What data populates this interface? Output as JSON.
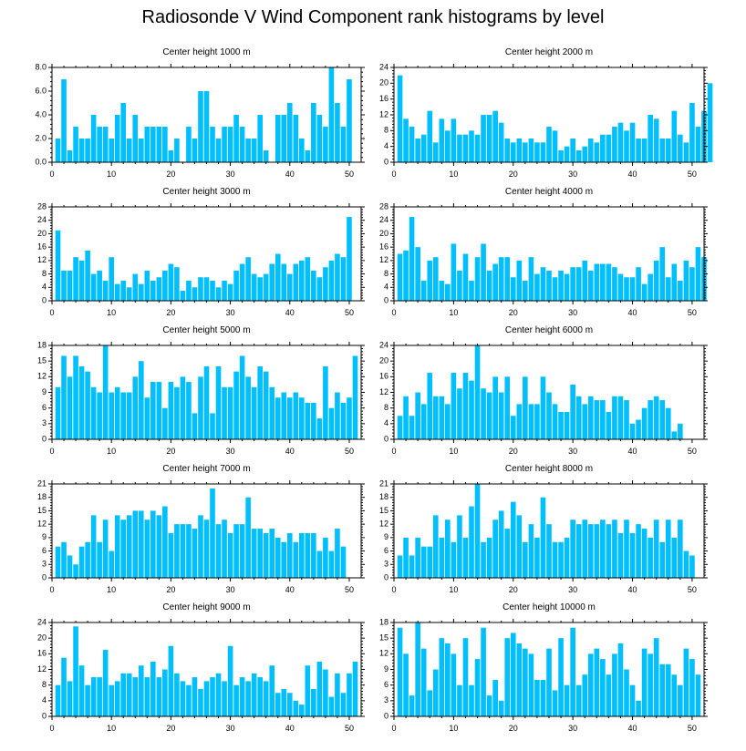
{
  "title": "Radiosonde V Wind Component rank histograms by level",
  "colors": {
    "bar": "#00BFFF",
    "axis": "#000000",
    "background": "#ffffff"
  },
  "chart_data": [
    {
      "type": "bar",
      "title": "Center height 1000 m",
      "xlim": [
        0,
        52
      ],
      "ylim": [
        0,
        8
      ],
      "yticks": [
        "0.0",
        "2.0",
        "4.0",
        "6.0",
        "8.0"
      ],
      "xticks": [
        "0",
        "10",
        "20",
        "30",
        "40",
        "50"
      ],
      "values": [
        2,
        7,
        1,
        3,
        2,
        2,
        4,
        3,
        3,
        2,
        4,
        5,
        2,
        4,
        2,
        3,
        3,
        3,
        3,
        1,
        2,
        0,
        3,
        2,
        6,
        6,
        3,
        2,
        3,
        3,
        4,
        3,
        2,
        2,
        4,
        1,
        0,
        4,
        4,
        5,
        4,
        2,
        1,
        5,
        4,
        3,
        8,
        5,
        3,
        7
      ]
    },
    {
      "type": "bar",
      "title": "Center height 2000 m",
      "xlim": [
        0,
        52
      ],
      "ylim": [
        0,
        24
      ],
      "yticks": [
        "0",
        "4",
        "8",
        "12",
        "16",
        "20",
        "24"
      ],
      "xticks": [
        "0",
        "10",
        "20",
        "30",
        "40",
        "50"
      ],
      "values": [
        22,
        11,
        9,
        6,
        7,
        13,
        5,
        11,
        8,
        11,
        7,
        7,
        8,
        7,
        12,
        12,
        13,
        10,
        6,
        5,
        6,
        5,
        6,
        5,
        5,
        9,
        8,
        3,
        4,
        6,
        3,
        4,
        6,
        5,
        7,
        7,
        9,
        10,
        8,
        10,
        6,
        6,
        12,
        11,
        6,
        6,
        13,
        7,
        5,
        15,
        9,
        13,
        20
      ]
    },
    {
      "type": "bar",
      "title": "Center height 3000 m",
      "xlim": [
        0,
        52
      ],
      "ylim": [
        0,
        28
      ],
      "yticks": [
        "0",
        "4",
        "8",
        "12",
        "16",
        "20",
        "24",
        "28"
      ],
      "xticks": [
        "0",
        "10",
        "20",
        "30",
        "40",
        "50"
      ],
      "values": [
        21,
        9,
        9,
        13,
        12,
        15,
        8,
        9,
        6,
        13,
        5,
        6,
        4,
        8,
        5,
        9,
        6,
        7,
        9,
        11,
        10,
        3,
        6,
        4,
        7,
        7,
        6,
        4,
        6,
        5,
        9,
        11,
        13,
        8,
        7,
        8,
        11,
        14,
        11,
        8,
        11,
        12,
        13,
        9,
        7,
        10,
        12,
        14,
        13,
        25
      ]
    },
    {
      "type": "bar",
      "title": "Center height 4000 m",
      "xlim": [
        0,
        52
      ],
      "ylim": [
        0,
        28
      ],
      "yticks": [
        "0",
        "4",
        "8",
        "12",
        "16",
        "20",
        "24",
        "28"
      ],
      "xticks": [
        "0",
        "10",
        "20",
        "30",
        "40",
        "50"
      ],
      "values": [
        14,
        15,
        25,
        16,
        6,
        12,
        13,
        6,
        5,
        17,
        9,
        14,
        6,
        13,
        17,
        9,
        11,
        13,
        13,
        7,
        12,
        6,
        13,
        8,
        10,
        9,
        7,
        9,
        8,
        10,
        10,
        12,
        9,
        11,
        11,
        11,
        10,
        8,
        7,
        7,
        10,
        5,
        8,
        12,
        16,
        7,
        11,
        6,
        12,
        10,
        16,
        13
      ]
    },
    {
      "type": "bar",
      "title": "Center height 5000 m",
      "xlim": [
        0,
        52
      ],
      "ylim": [
        0,
        18
      ],
      "yticks": [
        "0",
        "3",
        "6",
        "9",
        "12",
        "15",
        "18"
      ],
      "xticks": [
        "0",
        "10",
        "20",
        "30",
        "40",
        "50"
      ],
      "values": [
        10,
        16,
        12,
        16,
        14,
        13,
        10,
        9,
        18,
        9,
        10,
        9,
        9,
        12,
        15,
        8,
        11,
        11,
        6,
        11,
        10,
        12,
        11,
        5,
        12,
        14,
        5,
        14,
        10,
        10,
        13,
        16,
        12,
        10,
        14,
        13,
        10,
        8,
        9,
        8,
        9,
        8,
        7,
        7,
        4,
        14,
        6,
        9,
        7,
        8,
        16
      ]
    },
    {
      "type": "bar",
      "title": "Center height 6000 m",
      "xlim": [
        0,
        52
      ],
      "ylim": [
        0,
        24
      ],
      "yticks": [
        "0",
        "4",
        "8",
        "12",
        "16",
        "20",
        "24"
      ],
      "xticks": [
        "0",
        "10",
        "20",
        "30",
        "40",
        "50"
      ],
      "values": [
        6,
        11,
        6,
        12,
        9,
        17,
        11,
        11,
        9,
        17,
        13,
        17,
        15,
        24,
        13,
        12,
        16,
        12,
        16,
        6,
        9,
        16,
        9,
        9,
        16,
        12,
        9,
        7,
        7,
        14,
        11,
        9,
        11,
        10,
        10,
        7,
        11,
        11,
        10,
        4,
        5,
        8,
        10,
        11,
        10,
        8,
        2,
        4
      ]
    },
    {
      "type": "bar",
      "title": "Center height 7000 m",
      "xlim": [
        0,
        52
      ],
      "ylim": [
        0,
        21
      ],
      "yticks": [
        "0",
        "3",
        "6",
        "9",
        "12",
        "15",
        "18",
        "21"
      ],
      "xticks": [
        "0",
        "10",
        "20",
        "30",
        "40",
        "50"
      ],
      "values": [
        7,
        8,
        5,
        3,
        7,
        8,
        14,
        8,
        13,
        6,
        14,
        13,
        14,
        15,
        15,
        13,
        15,
        14,
        16,
        10,
        12,
        12,
        12,
        11,
        14,
        13,
        20,
        12,
        13,
        10,
        12,
        12,
        18,
        11,
        11,
        10,
        11,
        9,
        8,
        10,
        8,
        10,
        10,
        10,
        6,
        9,
        6,
        11,
        7
      ]
    },
    {
      "type": "bar",
      "title": "Center height 8000 m",
      "xlim": [
        0,
        52
      ],
      "ylim": [
        0,
        21
      ],
      "yticks": [
        "0",
        "3",
        "6",
        "9",
        "12",
        "15",
        "18",
        "21"
      ],
      "xticks": [
        "0",
        "10",
        "20",
        "30",
        "40",
        "50"
      ],
      "values": [
        5,
        9,
        5,
        9,
        7,
        7,
        14,
        9,
        13,
        8,
        14,
        9,
        16,
        21,
        8,
        9,
        13,
        15,
        11,
        17,
        14,
        8,
        12,
        9,
        18,
        12,
        8,
        8,
        9,
        13,
        12,
        13,
        12,
        12,
        13,
        12,
        13,
        10,
        13,
        10,
        12,
        11,
        9,
        13,
        8,
        13,
        9,
        13,
        6,
        5
      ]
    },
    {
      "type": "bar",
      "title": "Center height 9000 m",
      "xlim": [
        0,
        52
      ],
      "ylim": [
        0,
        24
      ],
      "yticks": [
        "0",
        "4",
        "8",
        "12",
        "16",
        "20",
        "24"
      ],
      "xticks": [
        "0",
        "10",
        "20",
        "30",
        "40",
        "50"
      ],
      "values": [
        8,
        15,
        9,
        23,
        13,
        8,
        10,
        10,
        17,
        8,
        9,
        11,
        11,
        10,
        13,
        10,
        14,
        10,
        12,
        18,
        11,
        9,
        8,
        10,
        7,
        9,
        10,
        11,
        9,
        18,
        8,
        10,
        9,
        11,
        10,
        9,
        13,
        6,
        7,
        6,
        4,
        3,
        13,
        7,
        14,
        12,
        5,
        11,
        6,
        11,
        14
      ]
    },
    {
      "type": "bar",
      "title": "Center height 10000 m",
      "xlim": [
        0,
        52
      ],
      "ylim": [
        0,
        18
      ],
      "yticks": [
        "0",
        "3",
        "6",
        "9",
        "12",
        "15",
        "18"
      ],
      "xticks": [
        "0",
        "10",
        "20",
        "30",
        "40",
        "50"
      ],
      "values": [
        17,
        12,
        4,
        18,
        13,
        5,
        9,
        15,
        14,
        12,
        6,
        15,
        6,
        11,
        17,
        4,
        7,
        3,
        15,
        16,
        14,
        13,
        12,
        7,
        7,
        13,
        5,
        15,
        6,
        17,
        6,
        8,
        12,
        13,
        11,
        8,
        12,
        14,
        9,
        6,
        3,
        13,
        12,
        15,
        10,
        10,
        8,
        6,
        13,
        11,
        8
      ]
    }
  ]
}
